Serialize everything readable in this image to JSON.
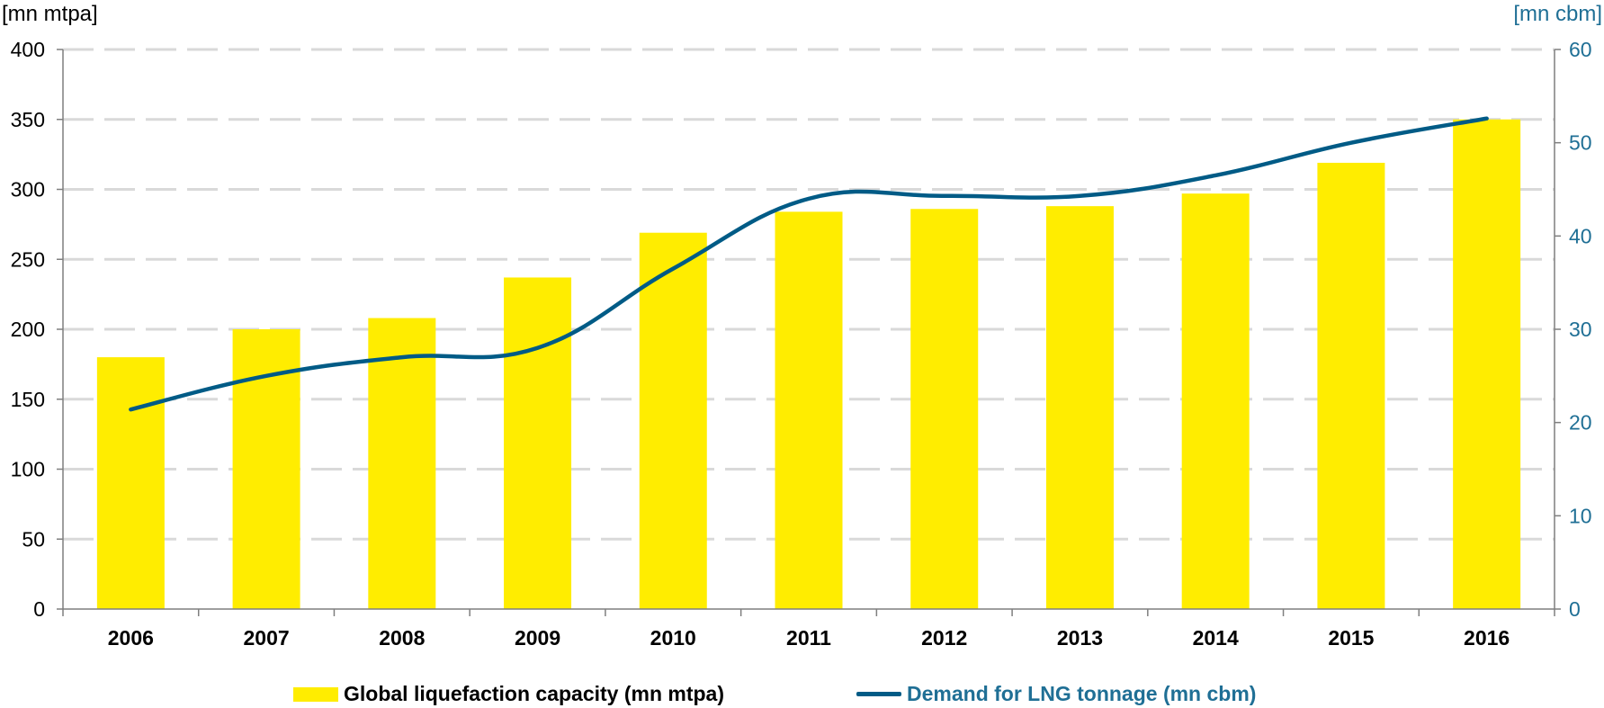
{
  "chart_data": {
    "type": "bar",
    "categories": [
      "2006",
      "2007",
      "2008",
      "2009",
      "2010",
      "2011",
      "2012",
      "2013",
      "2014",
      "2015",
      "2016"
    ],
    "series": [
      {
        "name": "Global liquefaction capacity (mn mtpa)",
        "type": "bar",
        "axis": "left",
        "values": [
          180,
          200,
          208,
          237,
          269,
          284,
          286,
          288,
          297,
          319,
          350
        ],
        "color": "#ffed00"
      },
      {
        "name": "Demand for LNG tonnage (mn cbm)",
        "type": "line",
        "axis": "right",
        "values": [
          21.4,
          25.0,
          27.0,
          28.0,
          36.5,
          44.0,
          44.3,
          44.3,
          46.5,
          50.0,
          52.6
        ],
        "color": "#005b86"
      }
    ],
    "y_left": {
      "label": "[mn mtpa]",
      "ylim": [
        0,
        400
      ],
      "ticks": [
        "0",
        "50",
        "100",
        "150",
        "200",
        "250",
        "300",
        "350",
        "400"
      ]
    },
    "y_right": {
      "label": "[mn cbm]",
      "ylim": [
        0,
        60
      ],
      "ticks": [
        "0",
        "10",
        "20",
        "30",
        "40",
        "50",
        "60"
      ]
    },
    "grid": true,
    "legend_position": "bottom"
  },
  "colors": {
    "axis_right": "#1f6f95",
    "grid": "#d9d9d9"
  }
}
